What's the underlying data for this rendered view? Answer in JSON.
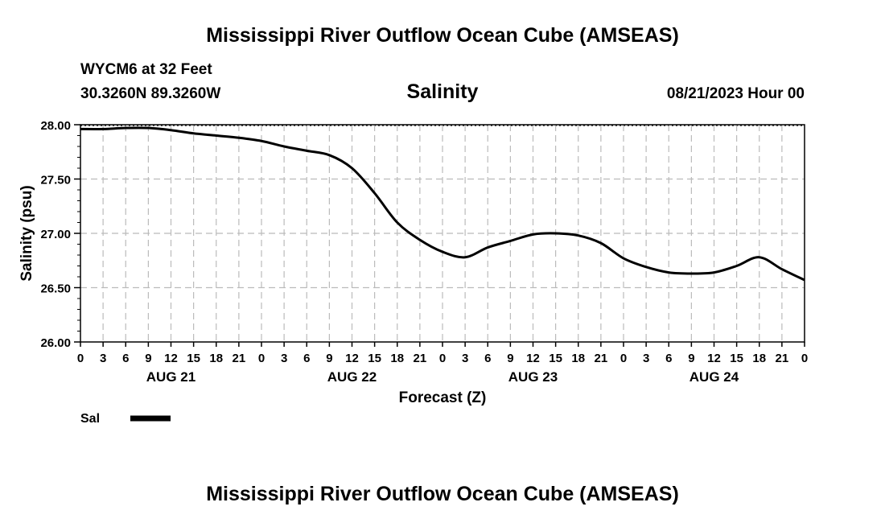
{
  "page": {
    "title": "Mississippi River Outflow Ocean Cube (AMSEAS)",
    "footer_title": "Mississippi River Outflow Ocean Cube (AMSEAS)",
    "station": "WYCM6 at 32 Feet",
    "location": "30.3260N  89.3260W",
    "chart_title": "Salinity",
    "run_time": "08/21/2023 Hour 00"
  },
  "legend": {
    "label": "Sal",
    "color": "#000000"
  },
  "chart_data": {
    "type": "line",
    "title": "Salinity",
    "xlabel": "Forecast (Z)",
    "ylabel": "Salinity (psu)",
    "ylim": [
      26.0,
      28.0
    ],
    "xlim": [
      0,
      96
    ],
    "y_ticks": [
      "26.00",
      "26.50",
      "27.00",
      "27.50",
      "28.00"
    ],
    "x_tick_labels": [
      "0",
      "3",
      "6",
      "9",
      "12",
      "15",
      "18",
      "21",
      "0",
      "3",
      "6",
      "9",
      "12",
      "15",
      "18",
      "21",
      "0",
      "3",
      "6",
      "9",
      "12",
      "15",
      "18",
      "21",
      "0",
      "3",
      "6",
      "9",
      "12",
      "15",
      "18",
      "21",
      "0"
    ],
    "day_labels": [
      "AUG 21",
      "AUG 22",
      "AUG 23",
      "AUG 24"
    ],
    "grid": true,
    "series": [
      {
        "name": "Sal",
        "color": "#000000",
        "x": [
          0,
          3,
          6,
          9,
          12,
          15,
          18,
          21,
          24,
          27,
          30,
          33,
          36,
          39,
          42,
          45,
          48,
          51,
          54,
          57,
          60,
          63,
          66,
          69,
          72,
          75,
          78,
          81,
          84,
          87,
          90,
          93,
          96
        ],
        "y": [
          27.96,
          27.96,
          27.97,
          27.97,
          27.95,
          27.92,
          27.9,
          27.88,
          27.85,
          27.8,
          27.76,
          27.72,
          27.6,
          27.37,
          27.1,
          26.94,
          26.83,
          26.78,
          26.87,
          26.93,
          26.99,
          27.0,
          26.98,
          26.91,
          26.77,
          26.69,
          26.64,
          26.63,
          26.64,
          26.7,
          26.78,
          26.67,
          26.57
        ]
      }
    ]
  }
}
